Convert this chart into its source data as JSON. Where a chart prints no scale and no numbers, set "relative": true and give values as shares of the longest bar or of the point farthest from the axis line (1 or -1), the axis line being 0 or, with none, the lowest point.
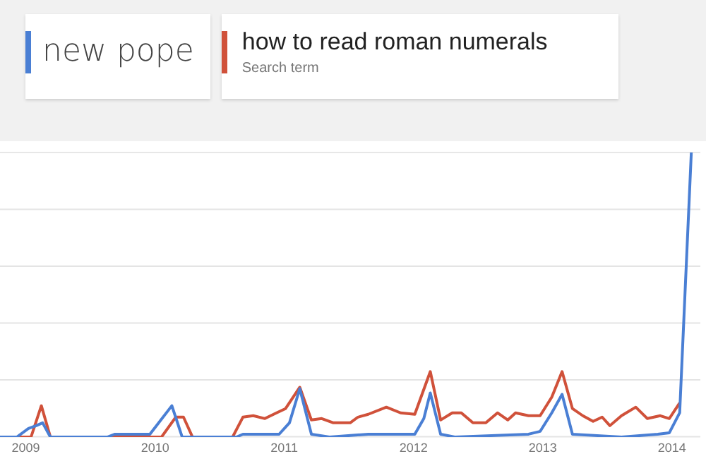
{
  "chart_data": {
    "type": "line",
    "relative": true,
    "legend": "top left",
    "grid": "y",
    "marker": "none",
    "line_style": "solid",
    "annotations": [
      "Search term"
    ],
    "xlim": [
      2008.8,
      2014.22
    ],
    "xticks": [
      2009,
      2010,
      2011,
      2012,
      2013,
      2014
    ],
    "series": [
      {
        "name": "new pope",
        "color": "#4a7fd4",
        "x": [
          2008.8,
          2008.93,
          2009.02,
          2009.08,
          2009.13,
          2009.19,
          2009.63,
          2009.69,
          2009.96,
          2010.13,
          2010.21,
          2010.63,
          2010.68,
          2010.96,
          2011.04,
          2011.12,
          2011.21,
          2011.35,
          2011.65,
          2012.01,
          2012.08,
          2012.13,
          2012.21,
          2012.32,
          2012.89,
          2012.98,
          2013.07,
          2013.15,
          2013.23,
          2013.61,
          2013.89,
          2013.98,
          2014.06,
          2014.15
        ],
        "values": [
          0,
          0,
          0.03,
          0.04,
          0.05,
          0,
          0,
          0.01,
          0.01,
          0.11,
          0,
          0,
          0.01,
          0.01,
          0.05,
          0.17,
          0.01,
          0,
          0.01,
          0.01,
          0.065,
          0.155,
          0.01,
          0,
          0.01,
          0.02,
          0.085,
          0.15,
          0.01,
          0,
          0.01,
          0.015,
          0.085,
          1
        ]
      },
      {
        "name": "how to read roman numerals",
        "color": "#d0513a",
        "x": [
          2008.8,
          2009.04,
          2009.12,
          2009.19,
          2010.05,
          2010.16,
          2010.22,
          2010.29,
          2010.6,
          2010.68,
          2010.76,
          2010.85,
          2010.94,
          2011.01,
          2011.12,
          2011.21,
          2011.29,
          2011.38,
          2011.51,
          2011.57,
          2011.65,
          2011.79,
          2011.9,
          2012.01,
          2012.13,
          2012.21,
          2012.3,
          2012.37,
          2012.46,
          2012.56,
          2012.65,
          2012.73,
          2012.79,
          2012.89,
          2012.98,
          2013.07,
          2013.15,
          2013.23,
          2013.31,
          2013.39,
          2013.46,
          2013.52,
          2013.61,
          2013.72,
          2013.81,
          2013.91,
          2013.98,
          2014.06
        ],
        "values": [
          0,
          0,
          0.11,
          0,
          0,
          0.07,
          0.07,
          0,
          0,
          0.07,
          0.075,
          0.065,
          0.085,
          0.1,
          0.175,
          0.06,
          0.065,
          0.05,
          0.05,
          0.07,
          0.08,
          0.105,
          0.085,
          0.08,
          0.23,
          0.06,
          0.085,
          0.085,
          0.05,
          0.05,
          0.085,
          0.06,
          0.085,
          0.075,
          0.075,
          0.14,
          0.23,
          0.1,
          0.075,
          0.055,
          0.07,
          0.04,
          0.075,
          0.105,
          0.065,
          0.075,
          0.065,
          0.12
        ]
      }
    ]
  }
}
